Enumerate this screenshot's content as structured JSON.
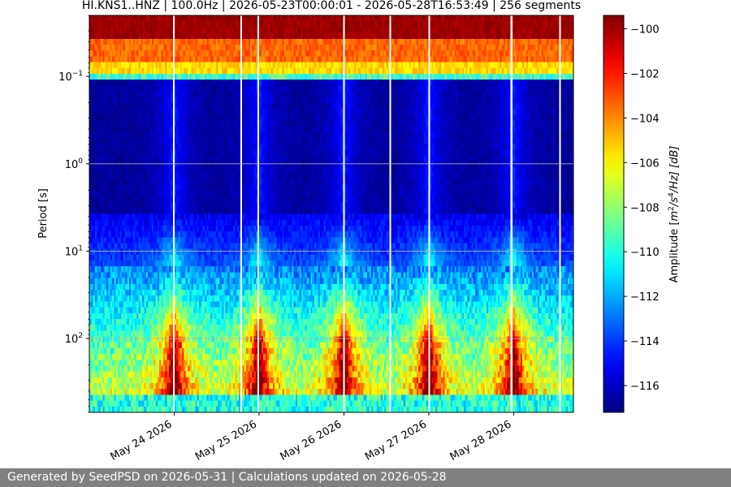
{
  "chart_data": {
    "type": "heatmap",
    "title": "HI.KNS1..HNZ | 100.0Hz | 2026-05-23T00:00:01 - 2026-05-28T16:53:49 | 256 segments",
    "ylabel": "Period [s]",
    "y_scale": "log",
    "y_inverted": true,
    "ylim": [
      0.02,
      700
    ],
    "y_ticks": [
      {
        "value": 0.1,
        "base": "10",
        "exp": "−1"
      },
      {
        "value": 1,
        "base": "10",
        "exp": "0"
      },
      {
        "value": 10,
        "base": "10",
        "exp": "1"
      },
      {
        "value": 100,
        "base": "10",
        "exp": "2"
      }
    ],
    "x_start": "2026-05-23T00:00:01",
    "x_end": "2026-05-28T16:53:49",
    "x_ticks": [
      "May 24 2026",
      "May 25 2026",
      "May 26 2026",
      "May 27 2026",
      "May 28 2026"
    ],
    "x_tick_dates": [
      "2026-05-24",
      "2026-05-25",
      "2026-05-26",
      "2026-05-27",
      "2026-05-28"
    ],
    "segments": 256,
    "data_gaps": [
      [
        "2026-05-23T23:40",
        "2026-05-23T23:55"
      ],
      [
        "2026-05-24T18:45",
        "2026-05-24T18:58"
      ],
      [
        "2026-05-24T23:35",
        "2026-05-24T23:55"
      ],
      [
        "2026-05-25T23:45",
        "2026-05-26T00:00"
      ],
      [
        "2026-05-26T12:50",
        "2026-05-26T13:02"
      ],
      [
        "2026-05-26T23:55",
        "2026-05-27T00:08"
      ],
      [
        "2026-05-27T23:05",
        "2026-05-27T23:40"
      ],
      [
        "2026-05-28T12:50",
        "2026-05-28T13:02"
      ]
    ],
    "features": {
      "microseism_band_s": [
        0.03,
        0.1
      ],
      "microseism_amplitude_db": -102,
      "quiet_band_s": [
        0.12,
        8
      ],
      "quiet_amplitude_db": -116,
      "daily_high_noise_peaks": [
        "2026-05-24",
        "2026-05-25",
        "2026-05-26",
        "2026-05-27",
        "2026-05-28"
      ]
    },
    "colorbar": {
      "label_prefix": "Amplitude [",
      "label_m": "m",
      "label_m_exp": "2",
      "label_s": "/s",
      "label_s_exp": "4",
      "label_suffix": "/Hz] [dB]",
      "colormap": "jet",
      "range": [
        -117.2,
        -99.4
      ],
      "ticks": [
        "−100",
        "−102",
        "−104",
        "−106",
        "−108",
        "−110",
        "−112",
        "−114",
        "−116"
      ],
      "tick_values": [
        -100,
        -102,
        -104,
        -106,
        -108,
        -110,
        -112,
        -114,
        -116
      ]
    },
    "grid": true
  },
  "footer": {
    "text": "Generated by SeedPSD on 2026-05-31 | Calculations updated on 2026-05-28"
  }
}
